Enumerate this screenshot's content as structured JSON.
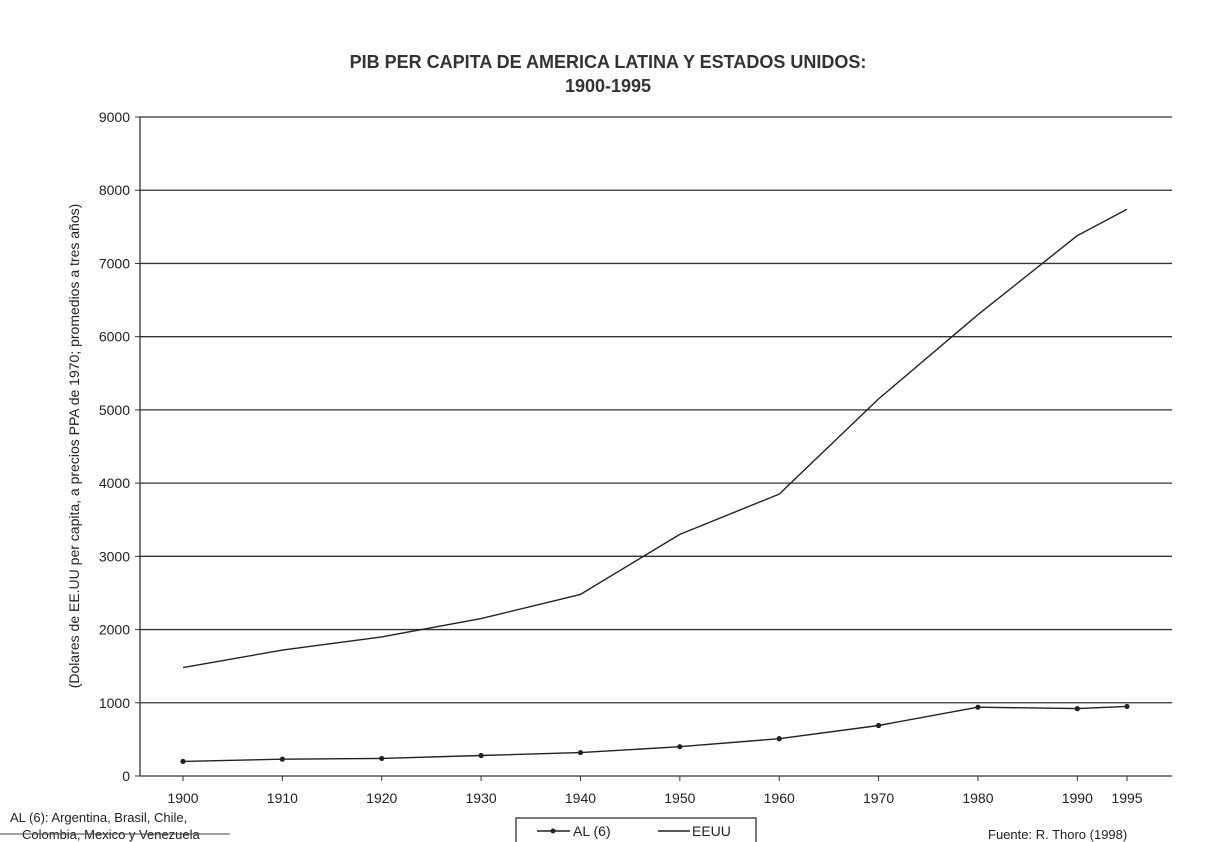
{
  "chart_data": {
    "type": "line",
    "title_line1": "PIB PER CAPITA DE AMERICA LATINA Y ESTADOS UNIDOS:",
    "title_line2": "1900-1995",
    "ylabel": "(Dolares de EE.UU per capita, a precios PPA de 1970; promedios a tres años)",
    "xlabel": "",
    "ylim": [
      0,
      9000
    ],
    "yticks": [
      0,
      1000,
      2000,
      3000,
      4000,
      5000,
      6000,
      7000,
      8000,
      9000
    ],
    "x": [
      1900,
      1910,
      1920,
      1930,
      1940,
      1950,
      1960,
      1970,
      1980,
      1990,
      1995
    ],
    "categories": [
      "1900",
      "1910",
      "1920",
      "1930",
      "1940",
      "1950",
      "1960",
      "1970",
      "1980",
      "1990",
      "1995"
    ],
    "series": [
      {
        "name": "AL (6)",
        "values": [
          200,
          230,
          240,
          280,
          320,
          400,
          510,
          690,
          940,
          920,
          950
        ],
        "marker": "dot",
        "color": "#222222"
      },
      {
        "name": "EEUU",
        "values": [
          1480,
          1720,
          1900,
          2150,
          2480,
          3300,
          3850,
          5150,
          6300,
          7380,
          7740
        ],
        "marker": "none",
        "color": "#222222"
      }
    ],
    "grid": true,
    "legend_position": "bottom-center",
    "note_line1": "AL (6): Argentina, Brasil, Chile,",
    "note_line2": "Colombia, Mexico y Venezuela",
    "source": "Fuente: R. Thoro (1998)"
  }
}
